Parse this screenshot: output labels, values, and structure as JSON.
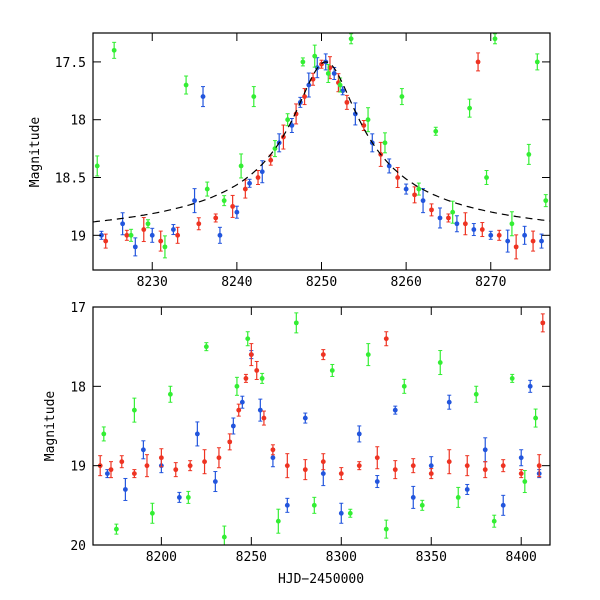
{
  "figure": {
    "xlabel": "HJD−2450000"
  },
  "chart_data": [
    {
      "type": "scatter",
      "id": "top",
      "title": "",
      "xlabel": "",
      "ylabel": "Magnitude",
      "xlim": [
        8223,
        8277
      ],
      "ylim": [
        19.3,
        17.25
      ],
      "y_inverted": true,
      "xticks": [
        8230,
        8240,
        8250,
        8260,
        8270
      ],
      "yticks": [
        17.5,
        18,
        18.5,
        19
      ],
      "ytick_labels": [
        "17.5",
        "18",
        "18.5",
        "19"
      ],
      "model_curve": {
        "color": "#000000",
        "style": "dashed",
        "baseline": 19.05,
        "peak_mag": 17.5,
        "peak_time": 8250.5,
        "description": "microlensing fit"
      },
      "series": [
        {
          "color": "#2255dd",
          "points": [
            [
              8224.0,
              19.0
            ],
            [
              8226.5,
              18.9
            ],
            [
              8228.0,
              19.1
            ],
            [
              8230.0,
              19.0
            ],
            [
              8232.5,
              18.95
            ],
            [
              8235.0,
              18.7
            ],
            [
              8236.0,
              17.8
            ],
            [
              8238.0,
              19.0
            ],
            [
              8240.0,
              18.8
            ],
            [
              8241.5,
              18.55
            ],
            [
              8243.0,
              18.45
            ],
            [
              8245.0,
              18.2
            ],
            [
              8246.5,
              18.05
            ],
            [
              8247.5,
              17.85
            ],
            [
              8248.5,
              17.7
            ],
            [
              8249.5,
              17.55
            ],
            [
              8250.5,
              17.5
            ],
            [
              8251.5,
              17.6
            ],
            [
              8252.5,
              17.75
            ],
            [
              8254.0,
              17.95
            ],
            [
              8256.0,
              18.2
            ],
            [
              8258.0,
              18.4
            ],
            [
              8260.0,
              18.6
            ],
            [
              8262.0,
              18.7
            ],
            [
              8264.0,
              18.85
            ],
            [
              8266.0,
              18.9
            ],
            [
              8268.0,
              18.95
            ],
            [
              8270.0,
              19.0
            ],
            [
              8272.0,
              19.05
            ],
            [
              8274.0,
              19.0
            ],
            [
              8276.0,
              19.05
            ]
          ]
        },
        {
          "color": "#ee3322",
          "points": [
            [
              8224.5,
              19.05
            ],
            [
              8227.0,
              19.0
            ],
            [
              8229.0,
              18.95
            ],
            [
              8231.0,
              19.05
            ],
            [
              8233.0,
              19.0
            ],
            [
              8235.5,
              18.9
            ],
            [
              8237.5,
              18.85
            ],
            [
              8239.5,
              18.75
            ],
            [
              8241.0,
              18.6
            ],
            [
              8242.5,
              18.5
            ],
            [
              8244.0,
              18.35
            ],
            [
              8245.5,
              18.15
            ],
            [
              8247.0,
              17.95
            ],
            [
              8248.0,
              17.8
            ],
            [
              8249.0,
              17.65
            ],
            [
              8250.0,
              17.52
            ],
            [
              8251.0,
              17.55
            ],
            [
              8252.0,
              17.68
            ],
            [
              8253.0,
              17.85
            ],
            [
              8255.0,
              18.05
            ],
            [
              8257.0,
              18.3
            ],
            [
              8259.0,
              18.5
            ],
            [
              8261.0,
              18.65
            ],
            [
              8263.0,
              18.78
            ],
            [
              8265.0,
              18.85
            ],
            [
              8267.0,
              18.9
            ],
            [
              8268.5,
              17.5
            ],
            [
              8269.0,
              18.95
            ],
            [
              8271.0,
              19.0
            ],
            [
              8273.0,
              19.1
            ],
            [
              8275.0,
              19.05
            ]
          ]
        },
        {
          "color": "#33ee33",
          "points": [
            [
              8223.5,
              18.4
            ],
            [
              8225.5,
              17.4
            ],
            [
              8227.5,
              19.0
            ],
            [
              8229.5,
              18.9
            ],
            [
              8231.5,
              19.1
            ],
            [
              8234.0,
              17.7
            ],
            [
              8236.5,
              18.6
            ],
            [
              8238.5,
              18.7
            ],
            [
              8240.5,
              18.4
            ],
            [
              8242.0,
              17.8
            ],
            [
              8244.5,
              18.25
            ],
            [
              8246.0,
              18.0
            ],
            [
              8247.8,
              17.5
            ],
            [
              8249.2,
              17.45
            ],
            [
              8250.8,
              17.6
            ],
            [
              8252.2,
              17.7
            ],
            [
              8253.5,
              17.3
            ],
            [
              8255.5,
              18.0
            ],
            [
              8257.5,
              18.2
            ],
            [
              8259.5,
              17.8
            ],
            [
              8261.5,
              18.6
            ],
            [
              8263.5,
              18.1
            ],
            [
              8265.5,
              18.8
            ],
            [
              8267.5,
              17.9
            ],
            [
              8269.5,
              18.5
            ],
            [
              8270.5,
              17.3
            ],
            [
              8272.5,
              18.9
            ],
            [
              8274.5,
              18.3
            ],
            [
              8275.5,
              17.5
            ],
            [
              8276.5,
              18.7
            ]
          ]
        }
      ]
    },
    {
      "type": "scatter",
      "id": "bottom",
      "title": "",
      "xlabel": "HJD−2450000",
      "ylabel": "Magnitude",
      "xlim": [
        8162,
        8416
      ],
      "ylim": [
        20,
        17
      ],
      "y_inverted": true,
      "xticks": [
        8200,
        8250,
        8300,
        8350,
        8400
      ],
      "yticks": [
        17,
        18,
        19,
        20
      ],
      "ytick_labels": [
        "17",
        "18",
        "19",
        "20"
      ],
      "series": [
        {
          "color": "#2255dd",
          "points": [
            [
              8170,
              19.1
            ],
            [
              8180,
              19.3
            ],
            [
              8190,
              18.8
            ],
            [
              8200,
              19.0
            ],
            [
              8210,
              19.4
            ],
            [
              8220,
              18.6
            ],
            [
              8230,
              19.2
            ],
            [
              8240,
              18.5
            ],
            [
              8245,
              18.2
            ],
            [
              8250,
              17.6
            ],
            [
              8255,
              18.3
            ],
            [
              8262,
              18.9
            ],
            [
              8270,
              19.5
            ],
            [
              8280,
              18.4
            ],
            [
              8290,
              19.1
            ],
            [
              8300,
              19.6
            ],
            [
              8310,
              18.6
            ],
            [
              8320,
              19.2
            ],
            [
              8330,
              18.3
            ],
            [
              8340,
              19.4
            ],
            [
              8350,
              19.0
            ],
            [
              8360,
              18.2
            ],
            [
              8370,
              19.3
            ],
            [
              8380,
              18.8
            ],
            [
              8390,
              19.5
            ],
            [
              8400,
              18.9
            ],
            [
              8405,
              18.0
            ],
            [
              8410,
              19.1
            ]
          ]
        },
        {
          "color": "#33ee33",
          "points": [
            [
              8168,
              18.6
            ],
            [
              8175,
              19.8
            ],
            [
              8185,
              18.3
            ],
            [
              8195,
              19.6
            ],
            [
              8205,
              18.1
            ],
            [
              8215,
              19.4
            ],
            [
              8225,
              17.5
            ],
            [
              8235,
              19.9
            ],
            [
              8242,
              18.0
            ],
            [
              8248,
              17.4
            ],
            [
              8256,
              17.9
            ],
            [
              8265,
              19.7
            ],
            [
              8275,
              17.2
            ],
            [
              8285,
              19.5
            ],
            [
              8295,
              17.8
            ],
            [
              8305,
              19.6
            ],
            [
              8315,
              17.6
            ],
            [
              8325,
              19.8
            ],
            [
              8335,
              18.0
            ],
            [
              8345,
              19.5
            ],
            [
              8355,
              17.7
            ],
            [
              8365,
              19.4
            ],
            [
              8375,
              18.1
            ],
            [
              8385,
              19.7
            ],
            [
              8395,
              17.9
            ],
            [
              8402,
              19.2
            ],
            [
              8408,
              18.4
            ]
          ]
        },
        {
          "color": "#ee3322",
          "points": [
            [
              8166,
              19.0
            ],
            [
              8172,
              19.05
            ],
            [
              8178,
              18.95
            ],
            [
              8185,
              19.1
            ],
            [
              8192,
              19.0
            ],
            [
              8200,
              18.9
            ],
            [
              8208,
              19.05
            ],
            [
              8216,
              19.0
            ],
            [
              8224,
              18.95
            ],
            [
              8232,
              18.9
            ],
            [
              8238,
              18.7
            ],
            [
              8243,
              18.3
            ],
            [
              8247,
              17.9
            ],
            [
              8250,
              17.6
            ],
            [
              8253,
              17.8
            ],
            [
              8257,
              18.4
            ],
            [
              8262,
              18.8
            ],
            [
              8270,
              19.0
            ],
            [
              8280,
              19.05
            ],
            [
              8290,
              18.95
            ],
            [
              8300,
              19.1
            ],
            [
              8310,
              19.0
            ],
            [
              8320,
              18.9
            ],
            [
              8330,
              19.05
            ],
            [
              8340,
              19.0
            ],
            [
              8350,
              19.1
            ],
            [
              8360,
              18.95
            ],
            [
              8370,
              19.0
            ],
            [
              8380,
              19.05
            ],
            [
              8390,
              19.0
            ],
            [
              8400,
              19.1
            ],
            [
              8410,
              19.0
            ],
            [
              8412,
              17.2
            ],
            [
              8325,
              17.4
            ],
            [
              8290,
              17.6
            ]
          ]
        }
      ]
    }
  ]
}
